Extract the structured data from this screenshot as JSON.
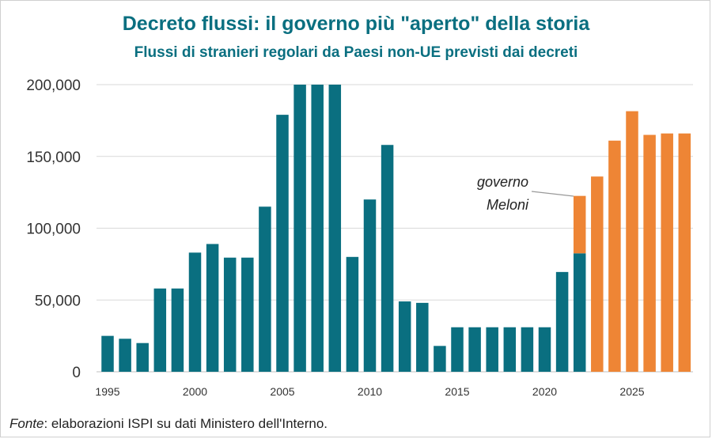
{
  "title": "Decreto flussi: il governo più \"aperto\" della storia",
  "subtitle": "Flussi di stranieri regolari da Paesi non-UE previsti dai decreti",
  "source": {
    "label": "Fonte",
    "text": ": elaborazioni ISPI su dati Ministero dell'Interno."
  },
  "colors": {
    "teal": "#0a6f80",
    "orange": "#ee8535",
    "text": "#333333",
    "grid": "#d9d9d9"
  },
  "chart_data": {
    "type": "bar",
    "stacked": true,
    "categories": [
      1995,
      1996,
      1997,
      1998,
      1999,
      2000,
      2001,
      2002,
      2003,
      2004,
      2005,
      2006,
      2007,
      2008,
      2009,
      2010,
      2011,
      2012,
      2013,
      2014,
      2015,
      2016,
      2017,
      2018,
      2019,
      2020,
      2021,
      2022,
      2023,
      2024,
      2025,
      2026,
      2027,
      2028
    ],
    "series": [
      {
        "color": "#0a6f80",
        "values": [
          25000,
          23000,
          20000,
          58000,
          58000,
          83000,
          89000,
          79500,
          79500,
          115000,
          179000,
          200000,
          200000,
          200000,
          80000,
          120000,
          158000,
          49000,
          48000,
          18000,
          31000,
          31000,
          31000,
          31000,
          31000,
          31000,
          69500,
          82500,
          0,
          0,
          0,
          0,
          0,
          0
        ]
      },
      {
        "color": "#ee8535",
        "values": [
          0,
          0,
          0,
          0,
          0,
          0,
          0,
          0,
          0,
          0,
          0,
          0,
          0,
          0,
          0,
          0,
          0,
          0,
          0,
          0,
          0,
          0,
          0,
          0,
          0,
          0,
          0,
          40000,
          136000,
          161000,
          181500,
          165000,
          166000,
          166000
        ]
      }
    ],
    "ylim": [
      0,
      200000
    ],
    "yticks": [
      0,
      50000,
      100000,
      150000,
      200000
    ],
    "ytick_labels": [
      "0",
      "50,000",
      "100,000",
      "150,000",
      "200,000"
    ],
    "xticks": [
      1995,
      2000,
      2005,
      2010,
      2015,
      2020,
      2025
    ],
    "xtick_labels": [
      "1995",
      "2000",
      "2005",
      "2010",
      "2015",
      "2020",
      "2025"
    ],
    "grid": true,
    "annotations": [
      {
        "lines": [
          "governo",
          "Meloni"
        ],
        "points_to": 2022
      }
    ]
  }
}
